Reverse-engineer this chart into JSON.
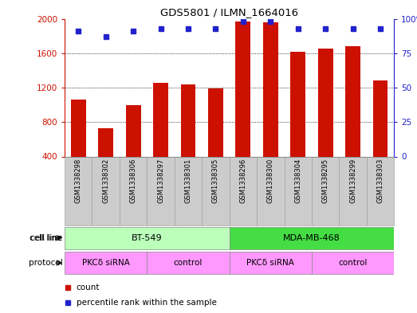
{
  "title": "GDS5801 / ILMN_1664016",
  "samples": [
    "GSM1338298",
    "GSM1338302",
    "GSM1338306",
    "GSM1338297",
    "GSM1338301",
    "GSM1338305",
    "GSM1338296",
    "GSM1338300",
    "GSM1338304",
    "GSM1338295",
    "GSM1338299",
    "GSM1338303"
  ],
  "counts": [
    1060,
    730,
    1000,
    1260,
    1240,
    1190,
    1970,
    1960,
    1620,
    1650,
    1680,
    1280
  ],
  "percentiles": [
    91,
    87,
    91,
    93,
    93,
    93,
    98,
    98,
    93,
    93,
    93,
    93
  ],
  "bar_color": "#cc1100",
  "dot_color": "#2222cc",
  "ylim_left": [
    400,
    2000
  ],
  "ylim_right": [
    0,
    100
  ],
  "yticks_left": [
    400,
    800,
    1200,
    1600,
    2000
  ],
  "yticks_right": [
    0,
    25,
    50,
    75,
    100
  ],
  "ytick_labels_right": [
    "0",
    "25",
    "50",
    "75",
    "100%"
  ],
  "legend_count_color": "#cc1100",
  "legend_dot_color": "#2222cc",
  "tick_bg_color": "#cccccc",
  "bar_bottom": 400,
  "cell_line_labels": [
    "BT-549",
    "MDA-MB-468"
  ],
  "cell_line_colors": [
    "#bbffbb",
    "#44dd44"
  ],
  "cell_line_ranges": [
    [
      0,
      5
    ],
    [
      6,
      11
    ]
  ],
  "protocol_labels": [
    "PKCδ siRNA",
    "control",
    "PKCδ siRNA",
    "control"
  ],
  "protocol_color": "#ff99ff",
  "protocol_ranges": [
    [
      0,
      2
    ],
    [
      3,
      5
    ],
    [
      6,
      8
    ],
    [
      9,
      11
    ]
  ]
}
